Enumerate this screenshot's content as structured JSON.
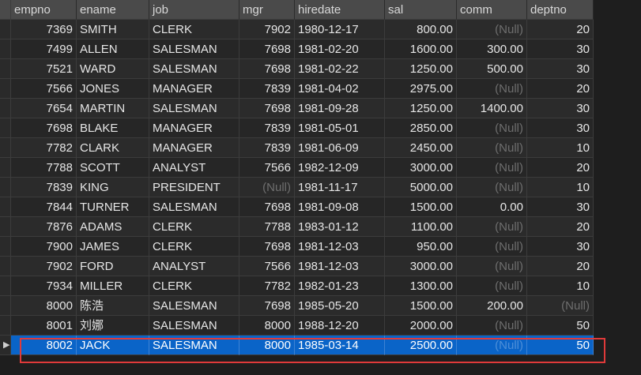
{
  "columns": [
    "empno",
    "ename",
    "job",
    "mgr",
    "hiredate",
    "sal",
    "comm",
    "deptno"
  ],
  "rows": [
    [
      "7369",
      "SMITH",
      "CLERK",
      "7902",
      "1980-12-17",
      "800.00",
      "(Null)",
      "20"
    ],
    [
      "7499",
      "ALLEN",
      "SALESMAN",
      "7698",
      "1981-02-20",
      "1600.00",
      "300.00",
      "30"
    ],
    [
      "7521",
      "WARD",
      "SALESMAN",
      "7698",
      "1981-02-22",
      "1250.00",
      "500.00",
      "30"
    ],
    [
      "7566",
      "JONES",
      "MANAGER",
      "7839",
      "1981-04-02",
      "2975.00",
      "(Null)",
      "20"
    ],
    [
      "7654",
      "MARTIN",
      "SALESMAN",
      "7698",
      "1981-09-28",
      "1250.00",
      "1400.00",
      "30"
    ],
    [
      "7698",
      "BLAKE",
      "MANAGER",
      "7839",
      "1981-05-01",
      "2850.00",
      "(Null)",
      "30"
    ],
    [
      "7782",
      "CLARK",
      "MANAGER",
      "7839",
      "1981-06-09",
      "2450.00",
      "(Null)",
      "10"
    ],
    [
      "7788",
      "SCOTT",
      "ANALYST",
      "7566",
      "1982-12-09",
      "3000.00",
      "(Null)",
      "20"
    ],
    [
      "7839",
      "KING",
      "PRESIDENT",
      "(Null)",
      "1981-11-17",
      "5000.00",
      "(Null)",
      "10"
    ],
    [
      "7844",
      "TURNER",
      "SALESMAN",
      "7698",
      "1981-09-08",
      "1500.00",
      "0.00",
      "30"
    ],
    [
      "7876",
      "ADAMS",
      "CLERK",
      "7788",
      "1983-01-12",
      "1100.00",
      "(Null)",
      "20"
    ],
    [
      "7900",
      "JAMES",
      "CLERK",
      "7698",
      "1981-12-03",
      "950.00",
      "(Null)",
      "30"
    ],
    [
      "7902",
      "FORD",
      "ANALYST",
      "7566",
      "1981-12-03",
      "3000.00",
      "(Null)",
      "20"
    ],
    [
      "7934",
      "MILLER",
      "CLERK",
      "7782",
      "1982-01-23",
      "1300.00",
      "(Null)",
      "10"
    ],
    [
      "8000",
      "陈浩",
      "SALESMAN",
      "7698",
      "1985-05-20",
      "1500.00",
      "200.00",
      "(Null)"
    ],
    [
      "8001",
      "刘娜",
      "SALESMAN",
      "8000",
      "1988-12-20",
      "2000.00",
      "(Null)",
      "50"
    ],
    [
      "8002",
      "JACK",
      "SALESMAN",
      "8000",
      "1985-03-14",
      "2500.00",
      "(Null)",
      "50"
    ]
  ],
  "selected_row_index": 16,
  "current_row_marker": "▶",
  "null_label": "(Null)",
  "colors": {
    "background": "#1e1e1e",
    "header": "#4a4a4a",
    "selection": "#0a64c8",
    "highlight_border": "#e03a3a",
    "null_text": "#6e6e6e"
  }
}
